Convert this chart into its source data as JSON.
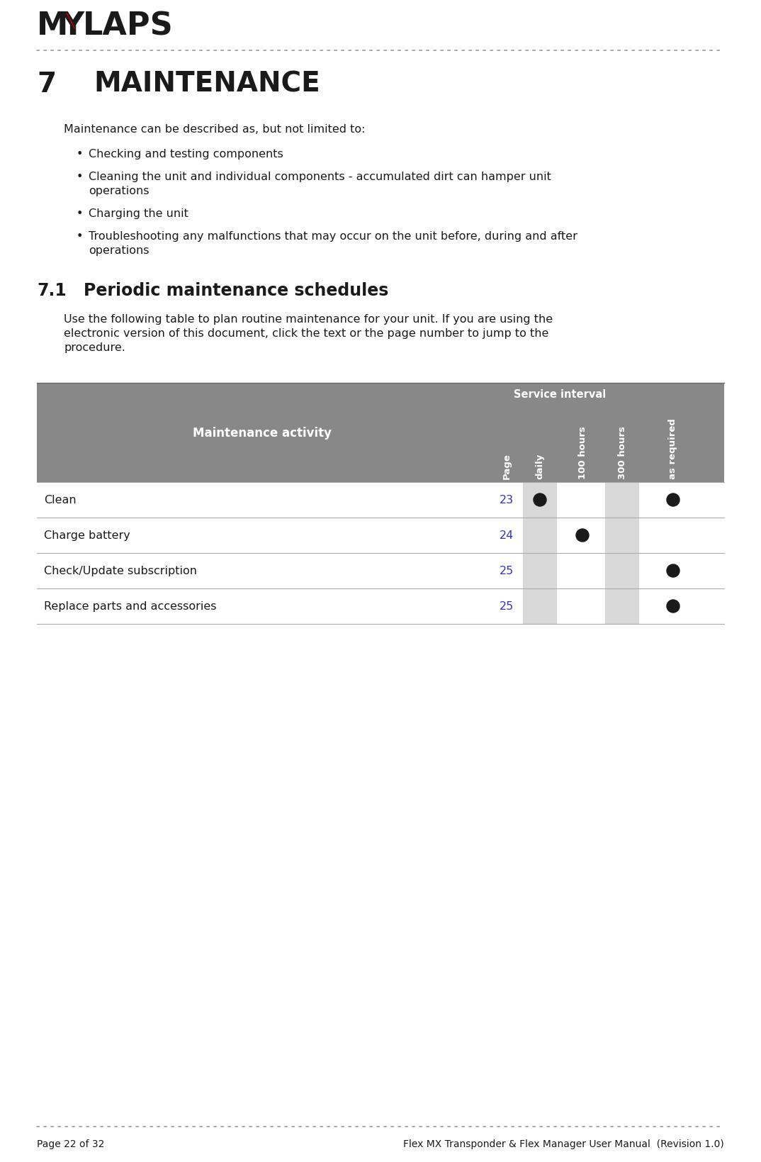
{
  "section_num": "7",
  "section_title": "MAINTENANCE",
  "subsection_num": "7.1",
  "subsection_title": "Periodic maintenance schedules",
  "intro_text": "Maintenance can be described as, but not limited to:",
  "bullets": [
    "Checking and testing components",
    "Cleaning the unit and individual components - accumulated dirt can hamper unit\noperations",
    "Charging the unit",
    "Troubleshooting any malfunctions that may occur on the unit before, during and after\noperations"
  ],
  "subsection_intro_lines": [
    "Use the following table to plan routine maintenance for your unit. If you are using the",
    "electronic version of this document, click the text or the page number to jump to the",
    "procedure."
  ],
  "table_header_main": "Maintenance activity",
  "table_service_interval": "Service interval",
  "table_col_headers": [
    "Page",
    "daily",
    "100 hours",
    "300 hours",
    "as required"
  ],
  "table_rows": [
    {
      "activity": "Clean",
      "page": "23",
      "daily": true,
      "100h": false,
      "300h": false,
      "asreq": true
    },
    {
      "activity": "Charge battery",
      "page": "24",
      "daily": false,
      "100h": true,
      "300h": false,
      "asreq": false
    },
    {
      "activity": "Check/Update subscription",
      "page": "25",
      "daily": false,
      "100h": false,
      "300h": false,
      "asreq": true
    },
    {
      "activity": "Replace parts and accessories",
      "page": "25",
      "daily": false,
      "100h": false,
      "300h": false,
      "asreq": true
    }
  ],
  "footer_left": "Page 22 of 32",
  "footer_right": "Flex MX Transponder & Flex Manager User Manual  (Revision 1.0)",
  "table_header_bg": "#888888",
  "table_row_bg": "#ffffff",
  "page_number_color": "#3333bb",
  "dot_color": "#1a1a1a",
  "col_shade_color": "#d8d8d8",
  "bg_color": "#ffffff",
  "title_color": "#1a1a1a",
  "body_text_color": "#1a1a1a",
  "mylaps_red": "#cc0000",
  "mylaps_black": "#1a1a1a",
  "dotted_line_color": "#999999"
}
